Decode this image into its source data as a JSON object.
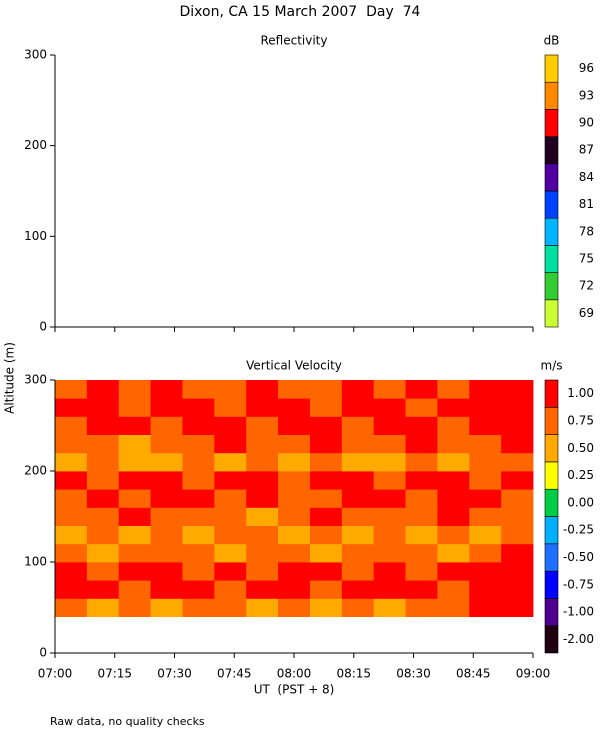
{
  "title": "Dixon, CA 15 March 2007  Day  74",
  "ylabel": "Altitude (m)",
  "xlabel": "UT  (PST + 8)",
  "note": "Raw data, no quality checks",
  "chart_data": [
    {
      "type": "heatmap",
      "title": "Reflectivity",
      "xlim": [
        420,
        540
      ],
      "xticks": [
        {
          "value": 420,
          "label": "07:00"
        },
        {
          "value": 435,
          "label": "07:15"
        },
        {
          "value": 450,
          "label": "07:30"
        },
        {
          "value": 465,
          "label": "07:45"
        },
        {
          "value": 480,
          "label": "08:00"
        },
        {
          "value": 495,
          "label": "08:15"
        },
        {
          "value": 510,
          "label": "08:30"
        },
        {
          "value": 525,
          "label": "08:45"
        },
        {
          "value": 540,
          "label": "09:00"
        }
      ],
      "ylim": [
        0,
        300
      ],
      "yticks": [
        0,
        100,
        200,
        300
      ],
      "colorbar": {
        "label": "dB",
        "ticks": [
          69,
          72,
          75,
          78,
          81,
          84,
          87,
          90,
          93,
          96
        ],
        "colors": [
          "#ccff33",
          "#33cc33",
          "#00e0a0",
          "#00b4ff",
          "#0040ff",
          "#5000a0",
          "#200020",
          "#ff0000",
          "#ff8800",
          "#ffcc00"
        ]
      },
      "xbins": [],
      "ybins": [],
      "z": []
    },
    {
      "type": "heatmap",
      "title": "Vertical Velocity",
      "xlim": [
        420,
        540
      ],
      "xticks": [
        {
          "value": 420,
          "label": "07:00"
        },
        {
          "value": 435,
          "label": "07:15"
        },
        {
          "value": 450,
          "label": "07:30"
        },
        {
          "value": 465,
          "label": "07:45"
        },
        {
          "value": 480,
          "label": "08:00"
        },
        {
          "value": 495,
          "label": "08:15"
        },
        {
          "value": 510,
          "label": "08:30"
        },
        {
          "value": 525,
          "label": "08:45"
        },
        {
          "value": 540,
          "label": "09:00"
        }
      ],
      "ylim": [
        0,
        300
      ],
      "yticks": [
        0,
        100,
        200,
        300
      ],
      "colorbar": {
        "label": "m/s",
        "ticks": [
          {
            "value": -2,
            "label": "-2.00"
          },
          {
            "value": -1,
            "label": "-1.00"
          },
          {
            "value": -0.75,
            "label": "-0.75"
          },
          {
            "value": -0.5,
            "label": "-0.50"
          },
          {
            "value": -0.25,
            "label": "-0.25"
          },
          {
            "value": 0,
            "label": "0.00"
          },
          {
            "value": 0.25,
            "label": "0.25"
          },
          {
            "value": 0.5,
            "label": "0.50"
          },
          {
            "value": 0.75,
            "label": "0.75"
          },
          {
            "value": 1,
            "label": "1.00"
          }
        ],
        "colors": [
          "#200010",
          "#500090",
          "#0000ff",
          "#2070ff",
          "#00b0ff",
          "#00cc44",
          "#ffff00",
          "#ffaa00",
          "#ff6600",
          "#ff0000"
        ]
      },
      "xbins": [
        420,
        428,
        436,
        444,
        452,
        460,
        468,
        476,
        484,
        492,
        500,
        508,
        516,
        524,
        532,
        540
      ],
      "ybins": [
        40,
        60,
        80,
        100,
        120,
        140,
        160,
        180,
        200,
        220,
        240,
        260,
        280,
        300
      ],
      "z": [
        [
          0.75,
          0.5,
          0.75,
          0.5,
          0.75,
          0.75,
          0.5,
          0.75,
          0.5,
          0.75,
          0.5,
          0.75,
          0.75,
          1,
          1
        ],
        [
          1,
          1,
          0.75,
          1,
          1,
          0.75,
          1,
          1,
          0.75,
          1,
          1,
          1,
          0.75,
          1,
          1
        ],
        [
          1,
          0.75,
          1,
          1,
          0.75,
          1,
          0.75,
          1,
          1,
          0.75,
          1,
          0.75,
          1,
          1,
          1
        ],
        [
          0.75,
          0.5,
          0.75,
          0.75,
          0.75,
          0.5,
          0.75,
          0.75,
          0.5,
          0.75,
          0.75,
          0.75,
          0.5,
          0.75,
          1
        ],
        [
          0.5,
          0.75,
          0.5,
          0.75,
          0.5,
          0.75,
          0.75,
          0.5,
          0.75,
          0.5,
          0.75,
          0.5,
          0.75,
          0.5,
          0.75
        ],
        [
          0.75,
          0.75,
          1,
          0.75,
          0.75,
          0.75,
          0.5,
          0.75,
          1,
          0.75,
          0.75,
          0.75,
          1,
          0.75,
          0.75
        ],
        [
          0.75,
          1,
          0.75,
          1,
          1,
          0.75,
          1,
          0.75,
          0.75,
          1,
          1,
          0.75,
          1,
          1,
          0.75
        ],
        [
          1,
          0.75,
          1,
          1,
          0.75,
          1,
          1,
          0.75,
          1,
          1,
          0.75,
          1,
          1,
          0.75,
          1
        ],
        [
          0.5,
          0.75,
          0.5,
          0.5,
          0.75,
          0.5,
          0.75,
          0.5,
          0.75,
          0.5,
          0.5,
          0.75,
          0.5,
          0.75,
          0.75
        ],
        [
          0.75,
          0.75,
          0.5,
          0.75,
          0.75,
          1,
          0.75,
          0.75,
          1,
          0.75,
          0.75,
          1,
          0.75,
          0.75,
          1
        ],
        [
          0.75,
          1,
          1,
          0.75,
          1,
          1,
          0.75,
          1,
          1,
          0.75,
          1,
          1,
          0.75,
          1,
          1
        ],
        [
          1,
          1,
          0.75,
          1,
          1,
          0.75,
          1,
          1,
          0.75,
          1,
          1,
          0.75,
          1,
          1,
          1
        ],
        [
          0.75,
          1,
          0.75,
          1,
          0.75,
          0.75,
          1,
          0.75,
          0.75,
          1,
          0.75,
          1,
          0.75,
          1,
          1
        ]
      ]
    }
  ]
}
